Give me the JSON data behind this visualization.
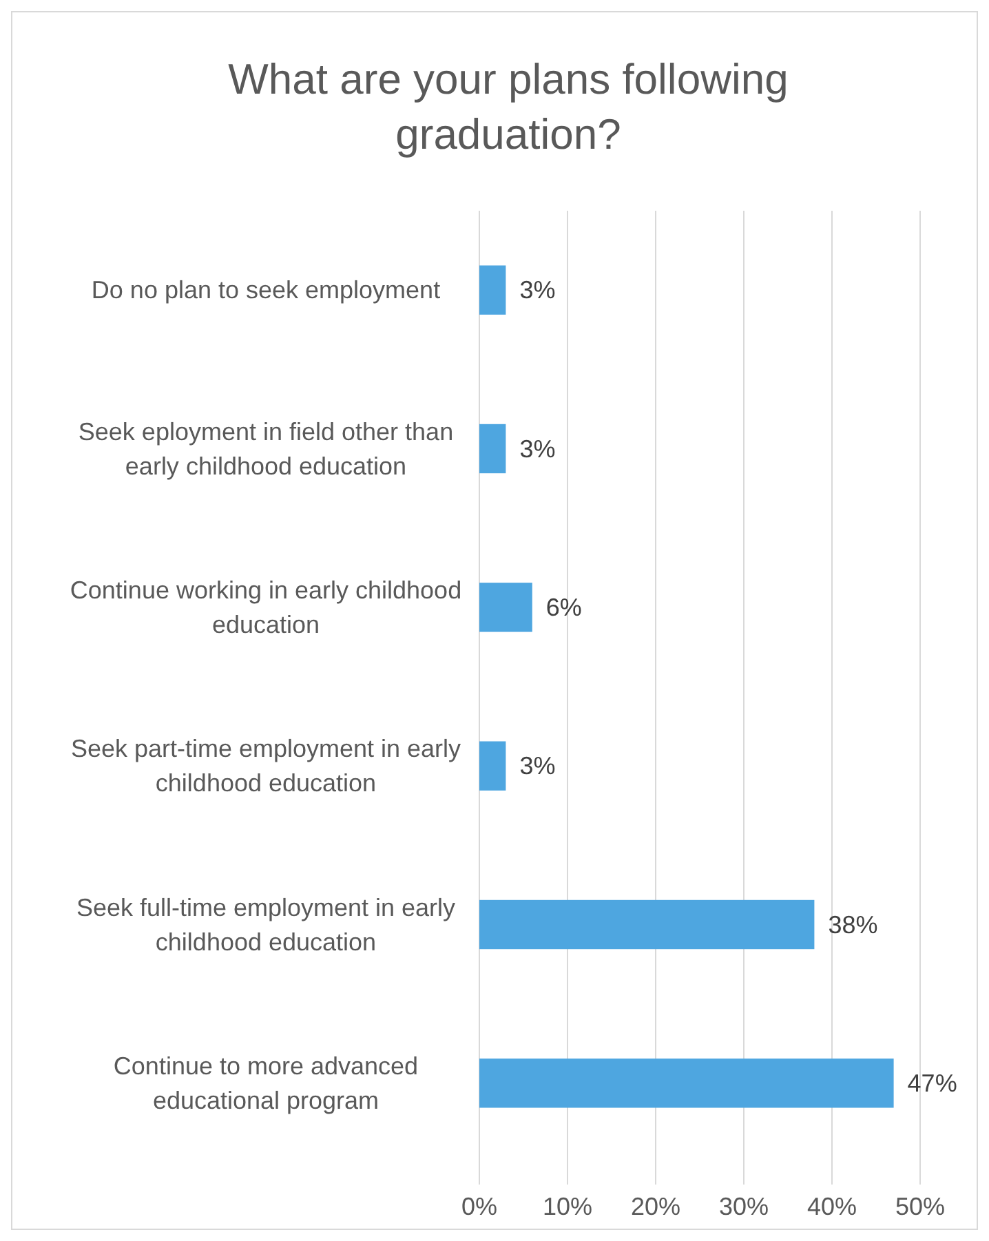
{
  "chart_data": {
    "type": "bar",
    "orientation": "horizontal",
    "title": "What are your plans following graduation?",
    "categories": [
      "Do no plan to seek employment",
      "Seek eployment in field other than early childhood education",
      "Continue working in early childhood education",
      "Seek part-time employment in early childhood education",
      "Seek full-time employment in early childhood education",
      "Continue to more advanced educational program"
    ],
    "values": [
      3,
      3,
      6,
      3,
      38,
      47
    ],
    "value_labels": [
      "3%",
      "3%",
      "6%",
      "3%",
      "38%",
      "47%"
    ],
    "color": "#4ea6e0",
    "xlim": [
      0,
      50
    ],
    "xticks": [
      {
        "value": 0,
        "label": "0%"
      },
      {
        "value": 10,
        "label": "10%"
      },
      {
        "value": 20,
        "label": "20%"
      },
      {
        "value": 30,
        "label": "30%"
      },
      {
        "value": 40,
        "label": "40%"
      },
      {
        "value": 50,
        "label": "50%"
      }
    ],
    "grid": "x"
  }
}
